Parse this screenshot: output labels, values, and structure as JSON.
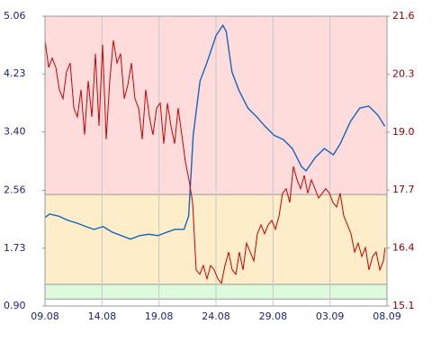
{
  "chart_data": {
    "type": "line",
    "xlim": [
      0,
      30
    ],
    "xticks": [
      {
        "value": 0,
        "label": "09.08"
      },
      {
        "value": 5,
        "label": "14.08"
      },
      {
        "value": 10,
        "label": "19.08"
      },
      {
        "value": 15,
        "label": "24.08"
      },
      {
        "value": 20,
        "label": "29.08"
      },
      {
        "value": 25,
        "label": "03.09"
      },
      {
        "value": 30,
        "label": "08.09"
      }
    ],
    "ylim": [
      0.9,
      5.06
    ],
    "yticks": [
      {
        "value": 0.9,
        "label": "0.90"
      },
      1.73,
      2.56,
      {
        "value": 3.4,
        "label": "3.40"
      },
      4.23,
      5.06
    ],
    "y2lim": [
      15.1,
      21.6
    ],
    "y2ticks": [
      15.1,
      16.4,
      17.7,
      {
        "value": 19.0,
        "label": "19.0"
      },
      20.3,
      21.6
    ],
    "band_edges": [
      1.0,
      1.21,
      2.5
    ],
    "band_colors": [
      "#ffffff",
      "#ddfbdc",
      "#fdedc9",
      "#ffdcdc"
    ],
    "grid": true,
    "series": [
      {
        "color": "#1565c0",
        "axis": "y",
        "x": [
          0,
          0.4,
          1.2,
          2.0,
          2.8,
          3.6,
          4.3,
          5.1,
          5.9,
          6.7,
          7.5,
          8.3,
          9.1,
          9.9,
          10.7,
          11.4,
          12.2,
          12.6,
          13.0,
          13.6,
          14.2,
          15.0,
          15.6,
          15.9,
          16.4,
          17.0,
          17.8,
          18.6,
          19.3,
          20.1,
          20.9,
          21.7,
          22.5,
          22.9,
          23.7,
          24.5,
          25.3,
          25.9,
          26.8,
          27.6,
          28.4,
          29.2,
          29.8
        ],
        "values": [
          2.17,
          2.22,
          2.19,
          2.13,
          2.09,
          2.04,
          2.0,
          2.04,
          1.96,
          1.91,
          1.86,
          1.91,
          1.93,
          1.91,
          1.96,
          2.0,
          2.0,
          2.19,
          3.35,
          4.13,
          4.39,
          4.78,
          4.93,
          4.84,
          4.26,
          4.0,
          3.74,
          3.61,
          3.48,
          3.35,
          3.29,
          3.16,
          2.9,
          2.84,
          3.03,
          3.16,
          3.07,
          3.23,
          3.55,
          3.74,
          3.77,
          3.64,
          3.48
        ]
      },
      {
        "color": "#cc0000",
        "axis": "y2",
        "x": [
          0,
          0.32,
          0.63,
          0.95,
          1.26,
          1.58,
          1.89,
          2.21,
          2.53,
          2.84,
          3.16,
          3.47,
          3.79,
          4.11,
          4.42,
          4.74,
          5.05,
          5.37,
          5.68,
          6.0,
          6.32,
          6.63,
          6.95,
          7.26,
          7.58,
          7.89,
          8.21,
          8.53,
          8.84,
          9.16,
          9.47,
          9.79,
          10.11,
          10.42,
          10.74,
          11.05,
          11.37,
          11.68,
          12.0,
          12.32,
          12.63,
          12.95,
          13.26,
          13.58,
          13.89,
          14.21,
          14.53,
          14.84,
          15.16,
          15.47,
          15.79,
          16.11,
          16.42,
          16.74,
          17.05,
          17.37,
          17.68,
          18.0,
          18.32,
          18.63,
          18.95,
          19.26,
          19.58,
          19.89,
          20.21,
          20.53,
          20.84,
          21.16,
          21.47,
          21.79,
          22.11,
          22.42,
          22.74,
          23.05,
          23.37,
          23.68,
          24.0,
          24.32,
          24.63,
          24.95,
          25.26,
          25.58,
          25.89,
          26.21,
          26.53,
          26.84,
          27.16,
          27.47,
          27.79,
          28.11,
          28.42,
          28.74,
          29.05,
          29.37,
          29.68,
          29.84
        ],
        "values": [
          21.06,
          20.45,
          20.66,
          20.45,
          19.95,
          19.75,
          20.35,
          20.55,
          19.54,
          19.34,
          19.95,
          18.94,
          20.15,
          19.34,
          20.76,
          19.14,
          20.96,
          18.84,
          20.15,
          21.06,
          20.55,
          20.76,
          19.75,
          20.05,
          20.55,
          19.75,
          19.54,
          18.84,
          19.95,
          19.34,
          18.94,
          19.54,
          19.65,
          18.74,
          19.65,
          19.14,
          18.74,
          19.54,
          18.94,
          18.33,
          17.93,
          17.42,
          15.91,
          15.81,
          16.01,
          15.71,
          16.01,
          15.91,
          15.71,
          15.61,
          16.01,
          16.31,
          15.91,
          15.81,
          16.31,
          15.91,
          16.51,
          16.31,
          16.11,
          16.72,
          16.92,
          16.72,
          16.92,
          17.02,
          16.82,
          17.12,
          17.63,
          17.73,
          17.42,
          18.23,
          17.93,
          17.73,
          18.03,
          17.63,
          17.93,
          17.73,
          17.52,
          17.63,
          17.73,
          17.63,
          17.42,
          17.32,
          17.63,
          17.12,
          16.92,
          16.72,
          16.31,
          16.51,
          16.21,
          16.41,
          15.91,
          16.21,
          16.31,
          15.91,
          16.11,
          16.41
        ]
      }
    ]
  }
}
